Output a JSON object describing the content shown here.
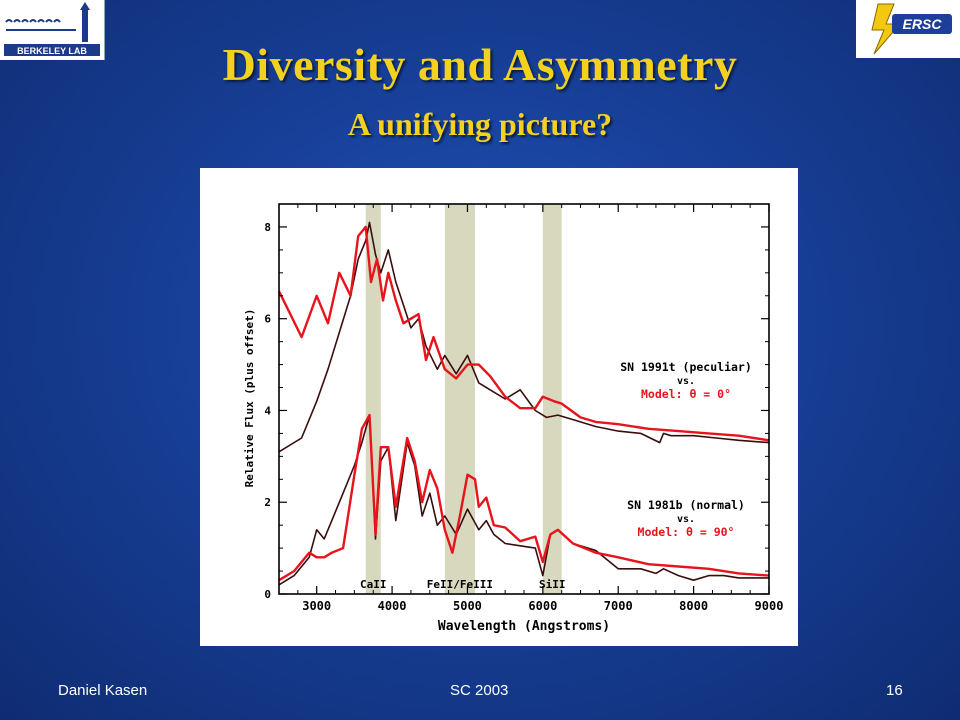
{
  "slide": {
    "title": "Diversity and Asymmetry",
    "subtitle": "A unifying picture?",
    "footer_left": "Daniel Kasen",
    "footer_center": "SC 2003",
    "footer_right": "16"
  },
  "logos": {
    "left_text": "BERKELEY LAB",
    "right_text": "ERSC"
  },
  "colors": {
    "title": "#f3d21f",
    "background": "#173f97",
    "observed_line": "#3a0d0d",
    "model_line": "#e8141c",
    "band": "#d8d8bf"
  },
  "chart_data": {
    "type": "line",
    "xlabel": "Wavelength (Angstroms)",
    "ylabel": "Relative Flux (plus offset)",
    "xlim": [
      2500,
      9000
    ],
    "ylim": [
      0,
      8.5
    ],
    "xticks": [
      3000,
      4000,
      5000,
      6000,
      7000,
      8000,
      9000
    ],
    "yticks": [
      0,
      2,
      4,
      6,
      8
    ],
    "bands": [
      {
        "label": "CaII",
        "x0": 3650,
        "x1": 3850
      },
      {
        "label": "FeII/FeIII",
        "x0": 4700,
        "x1": 5100
      },
      {
        "label": "SiII",
        "x0": 6000,
        "x1": 6250
      }
    ],
    "annotations": [
      {
        "text": "SN 1991t (peculiar)",
        "color": "#000000"
      },
      {
        "text": "vs.",
        "color": "#000000"
      },
      {
        "text": "Model: θ = 0°",
        "color": "#e8141c"
      },
      {
        "text": "SN 1981b (normal)",
        "color": "#000000"
      },
      {
        "text": "vs.",
        "color": "#000000"
      },
      {
        "text": "Model: θ = 90°",
        "color": "#e8141c"
      }
    ],
    "series": [
      {
        "color": "#3a0d0d",
        "x": [
          2500,
          2800,
          3000,
          3150,
          3300,
          3450,
          3550,
          3650,
          3700,
          3780,
          3850,
          3950,
          4050,
          4150,
          4250,
          4350,
          4450,
          4600,
          4700,
          4850,
          5000,
          5150,
          5300,
          5500,
          5700,
          5900,
          6050,
          6200,
          6400,
          6700,
          7000,
          7300,
          7550,
          7600,
          7700,
          8000,
          8300,
          8600,
          9000
        ],
        "y": [
          3.1,
          3.4,
          4.2,
          4.9,
          5.7,
          6.5,
          7.3,
          7.7,
          8.1,
          7.4,
          7.0,
          7.5,
          6.8,
          6.3,
          5.8,
          6.0,
          5.4,
          4.9,
          5.2,
          4.8,
          5.2,
          4.6,
          4.45,
          4.25,
          4.45,
          4.0,
          3.85,
          3.9,
          3.8,
          3.65,
          3.55,
          3.5,
          3.3,
          3.5,
          3.45,
          3.45,
          3.4,
          3.35,
          3.3
        ]
      },
      {
        "color": "#e8141c",
        "x": [
          2500,
          2800,
          3000,
          3150,
          3300,
          3450,
          3550,
          3650,
          3720,
          3800,
          3880,
          3950,
          4050,
          4150,
          4250,
          4350,
          4450,
          4550,
          4700,
          4850,
          5000,
          5150,
          5300,
          5500,
          5700,
          5900,
          6000,
          6150,
          6250,
          6500,
          6700,
          7000,
          7400,
          7800,
          8200,
          8600,
          9000
        ],
        "y": [
          6.6,
          5.6,
          6.5,
          5.9,
          7.0,
          6.5,
          7.8,
          8.0,
          6.8,
          7.3,
          6.4,
          7.0,
          6.4,
          5.9,
          6.0,
          6.1,
          5.1,
          5.6,
          4.9,
          4.7,
          5.0,
          5.0,
          4.75,
          4.3,
          4.05,
          4.05,
          4.3,
          4.2,
          4.15,
          3.85,
          3.75,
          3.7,
          3.6,
          3.55,
          3.5,
          3.45,
          3.35
        ]
      },
      {
        "color": "#3a0d0d",
        "x": [
          2500,
          2700,
          2900,
          3000,
          3100,
          3200,
          3350,
          3500,
          3600,
          3700,
          3780,
          3850,
          3950,
          4050,
          4200,
          4300,
          4400,
          4500,
          4600,
          4700,
          4850,
          5000,
          5150,
          5250,
          5350,
          5500,
          5700,
          5900,
          6000,
          6100,
          6200,
          6400,
          6700,
          7000,
          7300,
          7500,
          7600,
          7800,
          8000,
          8200,
          8400,
          8600,
          9000
        ],
        "y": [
          0.2,
          0.4,
          0.8,
          1.4,
          1.2,
          1.6,
          2.2,
          2.8,
          3.3,
          3.9,
          1.2,
          2.9,
          3.2,
          1.6,
          3.3,
          2.8,
          1.7,
          2.2,
          1.5,
          1.7,
          1.3,
          1.85,
          1.4,
          1.6,
          1.3,
          1.1,
          1.05,
          1.0,
          0.4,
          1.3,
          1.4,
          1.1,
          0.95,
          0.55,
          0.55,
          0.45,
          0.55,
          0.4,
          0.3,
          0.4,
          0.4,
          0.35,
          0.35
        ]
      },
      {
        "color": "#e8141c",
        "x": [
          2500,
          2700,
          2900,
          3000,
          3100,
          3200,
          3350,
          3500,
          3600,
          3700,
          3780,
          3850,
          3950,
          4050,
          4200,
          4300,
          4400,
          4500,
          4600,
          4700,
          4800,
          4900,
          5000,
          5100,
          5150,
          5250,
          5350,
          5500,
          5700,
          5900,
          6000,
          6100,
          6200,
          6400,
          6700,
          7000,
          7400,
          7800,
          8200,
          8600,
          9000
        ],
        "y": [
          0.3,
          0.5,
          0.9,
          0.8,
          0.8,
          0.9,
          1.0,
          2.6,
          3.6,
          3.9,
          1.3,
          3.2,
          3.2,
          1.9,
          3.4,
          2.9,
          2.0,
          2.7,
          2.3,
          1.4,
          0.9,
          1.7,
          2.6,
          2.5,
          1.9,
          2.1,
          1.5,
          1.45,
          1.15,
          1.25,
          0.7,
          1.3,
          1.4,
          1.1,
          0.9,
          0.8,
          0.65,
          0.6,
          0.55,
          0.45,
          0.4
        ]
      }
    ]
  }
}
